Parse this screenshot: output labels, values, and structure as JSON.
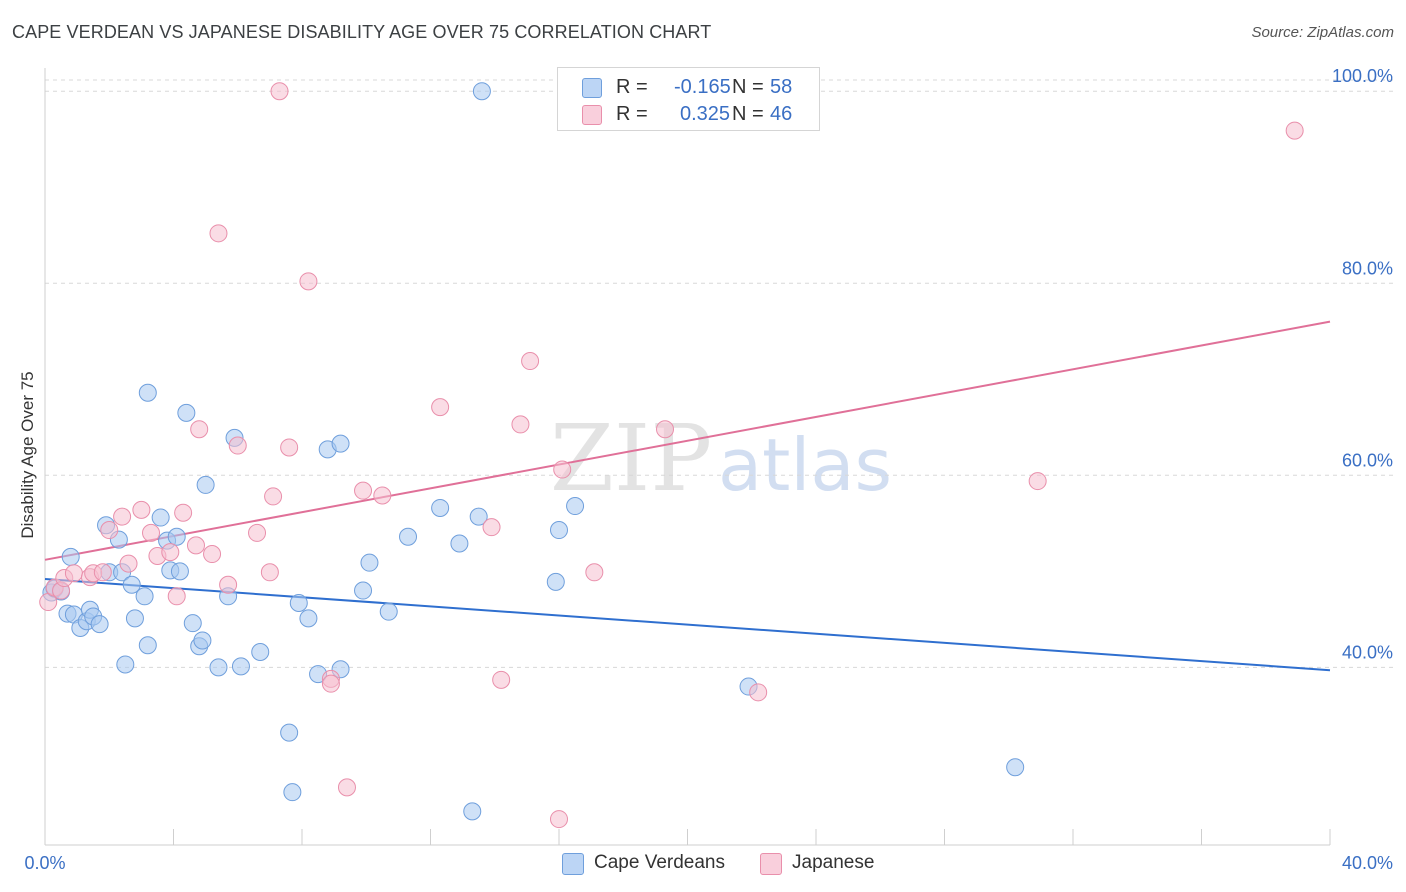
{
  "title": "CAPE VERDEAN VS JAPANESE DISABILITY AGE OVER 75 CORRELATION CHART",
  "source": "Source: ZipAtlas.com",
  "watermark": {
    "part1": "ZIP",
    "part2": "atlas"
  },
  "colors": {
    "blue_fill": "#a8c8f0",
    "blue_stroke": "#6f9fdc",
    "blue_line": "#2f6fcf",
    "pink_fill": "#f6bfd0",
    "pink_stroke": "#e98fab",
    "pink_line": "#e07098",
    "tick_label": "#3a6fc4",
    "grid": "#d8d8d8"
  },
  "legend_top": [
    {
      "series": "Cape Verdeans",
      "r_label": "R =",
      "r_value": "-0.165",
      "n_label": "N =",
      "n_value": "58"
    },
    {
      "series": "Japanese",
      "r_label": "R =",
      "r_value": "0.325",
      "n_label": "N =",
      "n_value": "46"
    }
  ],
  "chart_data": {
    "type": "scatter",
    "title": "CAPE VERDEAN VS JAPANESE DISABILITY AGE OVER 75 CORRELATION CHART",
    "xlabel": "",
    "ylabel": "Disability Age Over 75",
    "xlim": [
      0,
      40
    ],
    "ylim": [
      21.5,
      102
    ],
    "x_tick_labels": [
      "0.0%",
      "40.0%"
    ],
    "y_ticks": [
      40,
      60,
      80,
      100
    ],
    "y_tick_labels": [
      "40.0%",
      "60.0%",
      "80.0%",
      "100.0%"
    ],
    "grid": "horizontal dashed",
    "legend_position": "top-center and bottom-center",
    "series": [
      {
        "name": "Cape Verdeans",
        "trend": {
          "x": [
            0,
            40
          ],
          "y": [
            49.2,
            39.7
          ]
        },
        "points": [
          [
            0.2,
            47.8
          ],
          [
            0.3,
            48.2
          ],
          [
            0.5,
            47.9
          ],
          [
            0.7,
            45.6
          ],
          [
            0.8,
            51.5
          ],
          [
            0.9,
            45.5
          ],
          [
            1.1,
            44.1
          ],
          [
            1.3,
            44.8
          ],
          [
            1.4,
            46.0
          ],
          [
            1.5,
            45.3
          ],
          [
            1.7,
            44.5
          ],
          [
            1.9,
            54.8
          ],
          [
            2.0,
            49.9
          ],
          [
            2.3,
            53.3
          ],
          [
            2.4,
            49.9
          ],
          [
            2.5,
            40.3
          ],
          [
            2.7,
            48.6
          ],
          [
            2.8,
            45.1
          ],
          [
            3.1,
            47.4
          ],
          [
            3.2,
            42.3
          ],
          [
            3.2,
            68.6
          ],
          [
            3.6,
            55.6
          ],
          [
            3.8,
            53.2
          ],
          [
            3.9,
            50.1
          ],
          [
            4.1,
            53.6
          ],
          [
            4.2,
            50.0
          ],
          [
            4.4,
            66.5
          ],
          [
            4.6,
            44.6
          ],
          [
            4.8,
            42.2
          ],
          [
            4.9,
            42.8
          ],
          [
            5.0,
            59.0
          ],
          [
            5.4,
            40.0
          ],
          [
            5.7,
            47.4
          ],
          [
            5.9,
            63.9
          ],
          [
            6.1,
            40.1
          ],
          [
            6.7,
            41.6
          ],
          [
            7.6,
            33.2
          ],
          [
            7.7,
            27.0
          ],
          [
            7.9,
            46.7
          ],
          [
            8.2,
            45.1
          ],
          [
            8.5,
            39.3
          ],
          [
            8.8,
            62.7
          ],
          [
            9.2,
            63.3
          ],
          [
            9.2,
            39.8
          ],
          [
            9.9,
            48.0
          ],
          [
            10.1,
            50.9
          ],
          [
            10.7,
            45.8
          ],
          [
            11.3,
            53.6
          ],
          [
            12.3,
            56.6
          ],
          [
            12.9,
            52.9
          ],
          [
            13.3,
            25.0
          ],
          [
            13.5,
            55.7
          ],
          [
            13.6,
            100.0
          ],
          [
            15.9,
            48.9
          ],
          [
            16.0,
            54.3
          ],
          [
            16.5,
            56.8
          ],
          [
            21.9,
            38.0
          ],
          [
            30.2,
            29.6
          ]
        ]
      },
      {
        "name": "Japanese",
        "trend": {
          "x": [
            0,
            40
          ],
          "y": [
            51.2,
            76.0
          ]
        },
        "points": [
          [
            0.1,
            46.8
          ],
          [
            0.3,
            48.3
          ],
          [
            0.5,
            48.0
          ],
          [
            0.6,
            49.3
          ],
          [
            0.9,
            49.8
          ],
          [
            1.4,
            49.4
          ],
          [
            1.5,
            49.8
          ],
          [
            1.8,
            49.9
          ],
          [
            2.0,
            54.3
          ],
          [
            2.4,
            55.7
          ],
          [
            2.6,
            50.8
          ],
          [
            3.0,
            56.4
          ],
          [
            3.3,
            54.0
          ],
          [
            3.5,
            51.6
          ],
          [
            3.9,
            52.0
          ],
          [
            4.1,
            47.4
          ],
          [
            4.3,
            56.1
          ],
          [
            4.7,
            52.7
          ],
          [
            4.8,
            64.8
          ],
          [
            5.2,
            51.8
          ],
          [
            5.4,
            85.2
          ],
          [
            5.7,
            48.6
          ],
          [
            6.0,
            63.1
          ],
          [
            6.6,
            54.0
          ],
          [
            7.0,
            49.9
          ],
          [
            7.1,
            57.8
          ],
          [
            7.3,
            100.0
          ],
          [
            7.6,
            62.9
          ],
          [
            8.2,
            80.2
          ],
          [
            8.9,
            38.8
          ],
          [
            8.9,
            38.3
          ],
          [
            9.4,
            27.5
          ],
          [
            9.9,
            58.4
          ],
          [
            10.5,
            57.9
          ],
          [
            12.3,
            67.1
          ],
          [
            13.9,
            54.6
          ],
          [
            14.2,
            38.7
          ],
          [
            14.8,
            65.3
          ],
          [
            15.1,
            71.9
          ],
          [
            16.0,
            24.2
          ],
          [
            16.1,
            60.6
          ],
          [
            17.1,
            49.9
          ],
          [
            19.3,
            64.8
          ],
          [
            22.2,
            37.4
          ],
          [
            30.9,
            59.4
          ],
          [
            38.9,
            95.9
          ]
        ]
      }
    ]
  }
}
